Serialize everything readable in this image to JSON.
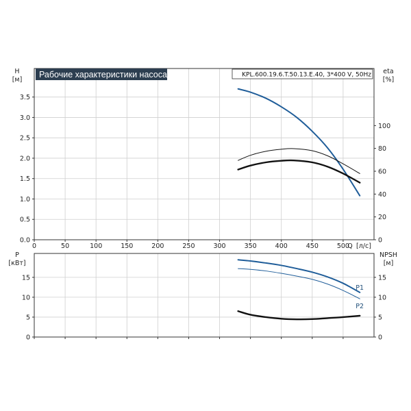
{
  "chart_data": [
    {
      "type": "line",
      "title": "Рабочие характеристики насоса",
      "model": "KPL.600.19.6.T.50.13.E.40, 3*400 V, 50Hz",
      "xlabel": "Q",
      "xunit": "[л/с]",
      "ylabel_left": "H",
      "yunit_left": "[м]",
      "ylabel_right": "eta",
      "yunit_right": "[%]",
      "xlim": [
        0,
        550
      ],
      "ylim_left": [
        0,
        4.2
      ],
      "ylim_right": [
        0,
        150
      ],
      "x_ticks": [
        "0",
        "50",
        "100",
        "150",
        "200",
        "250",
        "300",
        "350",
        "400",
        "450",
        "500"
      ],
      "y_ticks_left": [
        "0.0",
        "0.5",
        "1.0",
        "1.5",
        "2.0",
        "2.5",
        "3.0",
        "3.5"
      ],
      "y_ticks_right": [
        "0",
        "20",
        "40",
        "60",
        "80",
        "100"
      ],
      "grid": true,
      "series": [
        {
          "axis": "left",
          "color": "#1f5d99",
          "width": 2.0,
          "points": [
            [
              330,
              3.7
            ],
            [
              350,
              3.62
            ],
            [
              375,
              3.47
            ],
            [
              400,
              3.26
            ],
            [
              425,
              3.0
            ],
            [
              450,
              2.66
            ],
            [
              475,
              2.25
            ],
            [
              500,
              1.73
            ],
            [
              527,
              1.08
            ]
          ]
        },
        {
          "axis": "right",
          "color": "#111111",
          "width": 1.0,
          "points": [
            [
              330,
              69.5
            ],
            [
              350,
              74.0
            ],
            [
              375,
              77.5
            ],
            [
              400,
              79.3
            ],
            [
              420,
              79.8
            ],
            [
              450,
              78.0
            ],
            [
              475,
              73.5
            ],
            [
              500,
              66.5
            ],
            [
              527,
              58.0
            ]
          ]
        },
        {
          "axis": "right",
          "color": "#111111",
          "width": 2.4,
          "points": [
            [
              330,
              61.5
            ],
            [
              350,
              65.0
            ],
            [
              375,
              67.8
            ],
            [
              400,
              69.2
            ],
            [
              420,
              69.5
            ],
            [
              450,
              67.8
            ],
            [
              475,
              64.0
            ],
            [
              500,
              58.0
            ],
            [
              527,
              50.0
            ]
          ]
        }
      ]
    },
    {
      "type": "line",
      "ylabel_left": "P",
      "yunit_left": "[кВт]",
      "ylabel_right": "NPSH",
      "yunit_right": "[м]",
      "xlim": [
        0,
        550
      ],
      "ylim_left": [
        0,
        21
      ],
      "ylim_right": [
        0,
        21
      ],
      "y_ticks_left": [
        "0",
        "5",
        "10",
        "15"
      ],
      "y_ticks_right": [
        "0",
        "5",
        "10",
        "15"
      ],
      "grid": true,
      "series": [
        {
          "name": "P1",
          "axis": "left",
          "color": "#1f5d99",
          "width": 2.0,
          "points": [
            [
              330,
              19.4
            ],
            [
              350,
              19.1
            ],
            [
              375,
              18.6
            ],
            [
              400,
              18.0
            ],
            [
              425,
              17.2
            ],
            [
              450,
              16.3
            ],
            [
              475,
              15.1
            ],
            [
              500,
              13.5
            ],
            [
              527,
              11.2
            ]
          ]
        },
        {
          "name": "P2",
          "axis": "left",
          "color": "#1f5d99",
          "width": 1.0,
          "points": [
            [
              330,
              17.2
            ],
            [
              350,
              17.0
            ],
            [
              375,
              16.6
            ],
            [
              400,
              16.0
            ],
            [
              425,
              15.3
            ],
            [
              450,
              14.5
            ],
            [
              475,
              13.3
            ],
            [
              500,
              11.7
            ],
            [
              527,
              9.6
            ]
          ]
        },
        {
          "axis": "right",
          "color": "#111111",
          "width": 2.4,
          "points": [
            [
              330,
              6.5
            ],
            [
              350,
              5.6
            ],
            [
              375,
              5.0
            ],
            [
              400,
              4.6
            ],
            [
              425,
              4.45
            ],
            [
              450,
              4.5
            ],
            [
              475,
              4.75
            ],
            [
              500,
              5.0
            ],
            [
              527,
              5.35
            ]
          ]
        }
      ]
    }
  ]
}
